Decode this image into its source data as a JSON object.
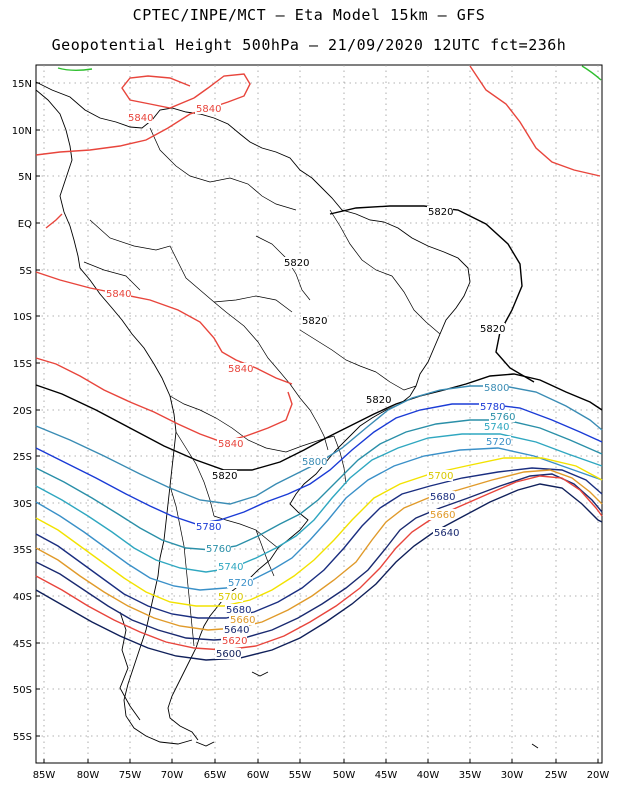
{
  "title": {
    "line1": "CPTEC/INPE/MCT –  Eta Model 15km – GFS",
    "line2": "Geopotential Height 500hPa – 21/09/2020 12UTC fct=236h"
  },
  "axes": {
    "lat_ticks": [
      "15N",
      "10N",
      "5N",
      "EQ",
      "5S",
      "10S",
      "15S",
      "20S",
      "25S",
      "30S",
      "35S",
      "40S",
      "45S",
      "50S",
      "55S"
    ],
    "lon_ticks": [
      "85W",
      "80W",
      "75W",
      "70W",
      "65W",
      "60W",
      "55W",
      "50W",
      "45W",
      "40W",
      "35W",
      "30W",
      "25W",
      "20W"
    ],
    "grid": "dotted"
  },
  "contours": [
    {
      "value": "5840",
      "color": "#e8453c"
    },
    {
      "value": "5820",
      "color": "#000000"
    },
    {
      "value": "5800",
      "color": "#3a8cb4"
    },
    {
      "value": "5780",
      "color": "#1a3bd6"
    },
    {
      "value": "5760",
      "color": "#2a8fa8"
    },
    {
      "value": "5740",
      "color": "#2fa7c0"
    },
    {
      "value": "5720",
      "color": "#3a90c8"
    },
    {
      "value": "5700",
      "color": "#f2e200"
    },
    {
      "value": "5680",
      "color": "#1a2e80"
    },
    {
      "value": "5660",
      "color": "#e09a2a"
    },
    {
      "value": "5640",
      "color": "#1a2a70"
    },
    {
      "value": "5620",
      "color": "#e8453c"
    },
    {
      "value": "5600",
      "color": "#10205a"
    }
  ],
  "labels": [
    {
      "text": "5840",
      "color": "#e8453c"
    },
    {
      "text": "5840",
      "color": "#e8453c"
    },
    {
      "text": "5840",
      "color": "#e8453c"
    },
    {
      "text": "5840",
      "color": "#e8453c"
    },
    {
      "text": "5840",
      "color": "#e8453c"
    },
    {
      "text": "5820",
      "color": "#000000"
    },
    {
      "text": "5820",
      "color": "#000000"
    },
    {
      "text": "5820",
      "color": "#000000"
    },
    {
      "text": "5820",
      "color": "#000000"
    },
    {
      "text": "5820",
      "color": "#000000"
    },
    {
      "text": "5820",
      "color": "#000000"
    },
    {
      "text": "5800",
      "color": "#3a8cb4"
    },
    {
      "text": "5800",
      "color": "#3a8cb4"
    },
    {
      "text": "5780",
      "color": "#1a3bd6"
    },
    {
      "text": "5780",
      "color": "#1a3bd6"
    },
    {
      "text": "5760",
      "color": "#2a8fa8"
    },
    {
      "text": "5760",
      "color": "#2a8fa8"
    },
    {
      "text": "5740",
      "color": "#2fa7c0"
    },
    {
      "text": "5740",
      "color": "#2fa7c0"
    },
    {
      "text": "5720",
      "color": "#3a90c8"
    },
    {
      "text": "5720",
      "color": "#3a90c8"
    },
    {
      "text": "5700",
      "color": "#d8c800"
    },
    {
      "text": "5700",
      "color": "#d8c800"
    },
    {
      "text": "5680",
      "color": "#1a2e80"
    },
    {
      "text": "5680",
      "color": "#1a2e80"
    },
    {
      "text": "5660",
      "color": "#e09a2a"
    },
    {
      "text": "5660",
      "color": "#e09a2a"
    },
    {
      "text": "5640",
      "color": "#1a2a70"
    },
    {
      "text": "5640",
      "color": "#1a2a70"
    },
    {
      "text": "5620",
      "color": "#e8453c"
    },
    {
      "text": "5600",
      "color": "#10205a"
    }
  ]
}
